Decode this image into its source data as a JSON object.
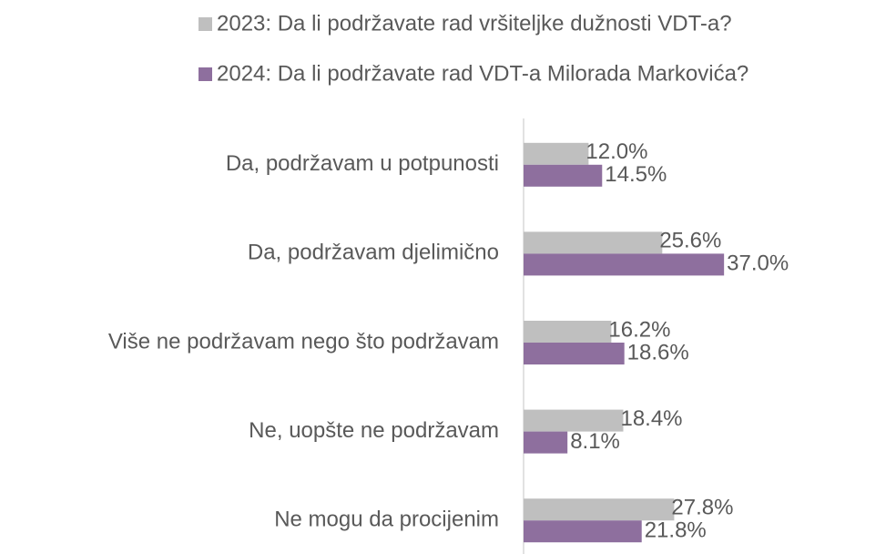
{
  "chart_data": {
    "type": "hbar",
    "categories": [
      "Da, podržavam u potpunosti",
      "Da, podržavam djelimično",
      "Više ne podržavam nego što podržavam",
      "Ne, uopšte ne podržavam",
      "Ne mogu da procijenim"
    ],
    "series": [
      {
        "name": "2023: Da li podržavate rad vršiteljke dužnosti VDT-a?",
        "color": "#bfbfbf",
        "values": [
          12.0,
          25.6,
          16.2,
          18.4,
          27.8
        ],
        "value_labels": [
          "12.0%",
          "25.6%",
          "16.2%",
          "18.4%",
          "27.8%"
        ]
      },
      {
        "name": "2024: Da li podržavate rad VDT-a Milorada Markovića?",
        "color": "#8e6f9e",
        "values": [
          14.5,
          37.0,
          18.6,
          8.1,
          21.8
        ],
        "value_labels": [
          "14.5%",
          "37.0%",
          "18.6%",
          "8.1%",
          "21.8%"
        ]
      }
    ],
    "legend": "top"
  }
}
